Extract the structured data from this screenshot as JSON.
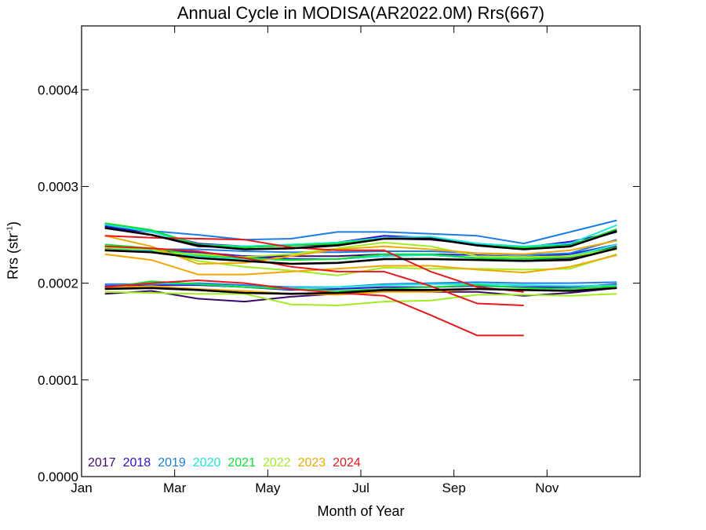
{
  "chart_data": {
    "type": "line",
    "title": "Annual Cycle in MODISA(AR2022.0M) Rrs(667)",
    "xlabel": "Month of Year",
    "ylabel": {
      "main": "Rrs (str",
      "sup": "-1",
      "close": ")"
    },
    "x_ticks": [
      {
        "label": "Jan",
        "value": 1
      },
      {
        "label": "Mar",
        "value": 3
      },
      {
        "label": "May",
        "value": 5
      },
      {
        "label": "Jul",
        "value": 7
      },
      {
        "label": "Sep",
        "value": 9
      },
      {
        "label": "Nov",
        "value": 11
      }
    ],
    "xlim": [
      1,
      13
    ],
    "y_ticks": [
      {
        "label": "0.0000",
        "value": 0
      },
      {
        "label": "0.0001",
        "value": 0.0001
      },
      {
        "label": "0.0002",
        "value": 0.0002
      },
      {
        "label": "0.0003",
        "value": 0.0003
      },
      {
        "label": "0.0004",
        "value": 0.0004
      }
    ],
    "ylim": [
      0,
      0.000466
    ],
    "x": [
      1.5,
      2.5,
      3.5,
      4.5,
      5.5,
      6.5,
      7.5,
      8.5,
      9.5,
      10.5,
      11.5,
      12.5
    ],
    "series": [
      {
        "name": "2017",
        "color": "#3d0a6b",
        "lines": [
          [
            0.000259,
            0.00025,
            0.000238,
            0.000237,
            0.000239,
            0.00024,
            0.000246,
            0.000245,
            0.00024,
            0.000236,
            0.00024,
            0.000253
          ],
          [
            0.000235,
            0.000233,
            0.00023,
            0.000228,
            0.000228,
            0.000228,
            0.00023,
            0.000229,
            0.000226,
            0.000225,
            0.000226,
            0.000238
          ],
          [
            0.000189,
            0.000192,
            0.000184,
            0.000181,
            0.000186,
            0.000189,
            0.000192,
            0.000191,
            0.000191,
            0.000187,
            0.00019,
            0.000195
          ]
        ]
      },
      {
        "name": "2018",
        "color": "#2a10d8",
        "lines": [
          [
            0.000258,
            0.000253,
            0.000241,
            0.000238,
            0.000239,
            0.000242,
            0.000249,
            0.000247,
            0.000241,
            0.000237,
            0.000243,
            0.000253
          ],
          [
            0.000236,
            0.000234,
            0.000232,
            0.000228,
            0.000225,
            0.000225,
            0.000228,
            0.00023,
            0.000229,
            0.000227,
            0.00023,
            0.00024
          ],
          [
            0.000197,
            0.000198,
            0.000198,
            0.000196,
            0.000193,
            0.000194,
            0.000196,
            0.000196,
            0.000197,
            0.000196,
            0.000196,
            0.000199
          ]
        ]
      },
      {
        "name": "2019",
        "color": "#1a7de8",
        "lines": [
          [
            0.00026,
            0.000254,
            0.00025,
            0.000245,
            0.000246,
            0.000253,
            0.000253,
            0.000251,
            0.000249,
            0.000241,
            0.000253,
            0.000265
          ],
          [
            0.000238,
            0.000235,
            0.000235,
            0.000233,
            0.000232,
            0.000232,
            0.000233,
            0.000233,
            0.000231,
            0.000229,
            0.000231,
            0.000245
          ],
          [
            0.000199,
            0.000199,
            0.0002,
            0.000198,
            0.000196,
            0.000196,
            0.000199,
            0.0002,
            0.000201,
            0.0002,
            0.0002,
            0.000201
          ]
        ]
      },
      {
        "name": "2020",
        "color": "#16e8d8",
        "lines": [
          [
            0.000261,
            0.000253,
            0.00024,
            0.000238,
            0.00024,
            0.000242,
            0.000247,
            0.000248,
            0.000241,
            0.000238,
            0.000241,
            0.00026
          ],
          [
            0.000237,
            0.000233,
            0.000228,
            0.000225,
            0.000224,
            0.000225,
            0.000228,
            0.000229,
            0.000226,
            0.000225,
            0.000228,
            0.00024
          ],
          [
            0.000196,
            0.0002,
            0.000199,
            0.000196,
            0.000195,
            0.000196,
            0.000198,
            0.000199,
            0.000199,
            0.000198,
            0.000197,
            0.000198
          ]
        ]
      },
      {
        "name": "2021",
        "color": "#10e030",
        "lines": [
          [
            0.000262,
            0.000255,
            0.00024,
            0.000237,
            0.000239,
            0.000241,
            0.000246,
            0.000246,
            0.000239,
            0.000237,
            0.000239,
            0.000256
          ],
          [
            0.00024,
            0.000236,
            0.000229,
            0.000226,
            0.000224,
            0.000225,
            0.00023,
            0.00023,
            0.000226,
            0.000225,
            0.000227,
            0.000237
          ],
          [
            0.000195,
            0.000202,
            0.000199,
            0.000196,
            0.000194,
            0.000192,
            0.000194,
            0.000196,
            0.000198,
            0.000195,
            0.000194,
            0.000197
          ]
        ]
      },
      {
        "name": "2022",
        "color": "#a0ee20",
        "lines": [
          [
            0.000237,
            0.000235,
            0.000223,
            0.000217,
            0.000213,
            0.000208,
            0.000216,
            0.000215,
            0.000215,
            0.000214,
            0.000215,
            0.00023
          ],
          [
            0.000235,
            0.000232,
            0.00023,
            0.000227,
            0.00023,
            0.000236,
            0.000242,
            0.000238,
            0.000228,
            0.000227,
            0.000228,
            0.000235
          ],
          [
            0.000191,
            0.00019,
            0.000189,
            0.000189,
            0.000178,
            0.000177,
            0.000181,
            0.000182,
            0.000188,
            0.000188,
            0.000187,
            0.000189
          ]
        ]
      },
      {
        "name": "2023",
        "color": "#f0a800",
        "lines": [
          [
            0.000249,
            0.000238,
            0.00022,
            0.000221,
            0.000228,
            0.000235,
            0.000238,
            0.000235,
            0.000231,
            0.00023,
            0.000234,
            0.000244
          ],
          [
            0.00023,
            0.000224,
            0.000209,
            0.000209,
            0.000212,
            0.000215,
            0.000218,
            0.000218,
            0.000214,
            0.000211,
            0.000217,
            0.000229
          ],
          [
            0.000195,
            0.000197,
            0.000194,
            0.000192,
            0.000189,
            0.000188,
            0.000191,
            0.000191,
            0.000194,
            0.000193,
            0.000192,
            0.000195
          ]
        ]
      },
      {
        "name": "2024",
        "color": "#e8181c",
        "lines": [
          [
            0.000249,
            0.000247,
            0.000246,
            0.000245,
            0.000237,
            0.000234,
            0.000234,
            0.000212,
            0.000196,
            0.000191
          ],
          [
            0.000238,
            0.000236,
            0.000233,
            0.000226,
            0.000217,
            0.000212,
            0.000212,
            0.000197,
            0.000179,
            0.000177
          ],
          [
            0.000196,
            0.0002,
            0.000203,
            0.0002,
            0.000194,
            0.00019,
            0.000187,
            0.000167,
            0.000146,
            0.000146
          ]
        ]
      },
      {
        "name": "",
        "color": "#000000",
        "lines": [
          [
            0.000257,
            0.00025,
            0.000239,
            0.000235,
            0.000236,
            0.000239,
            0.000246,
            0.000246,
            0.000239,
            0.000235,
            0.000238,
            0.000254
          ],
          [
            0.000234,
            0.000232,
            0.000226,
            0.000223,
            0.00022,
            0.000221,
            0.000225,
            0.000225,
            0.000224,
            0.000223,
            0.000224,
            0.000236
          ],
          [
            0.000194,
            0.000195,
            0.000193,
            0.00019,
            0.000189,
            0.00019,
            0.000193,
            0.000193,
            0.000194,
            0.000193,
            0.000192,
            0.000195
          ]
        ]
      }
    ]
  }
}
